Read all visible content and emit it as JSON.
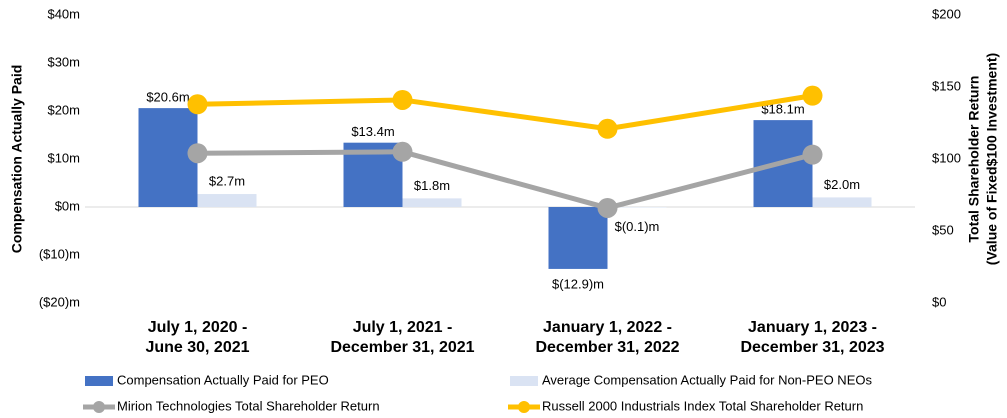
{
  "chart_data": {
    "type": "bar_line",
    "ylabel": "Compensation Actually Paid",
    "y2label": [
      "Total Shareholder Return",
      "(Value of Fixed$100 Investment)"
    ],
    "categories": [
      "July 1, 2020 -\nJune 30, 2021",
      "July 1, 2021 -\nDecember 31, 2021",
      "January 1, 2022 -\nDecember 31, 2022",
      "January 1, 2023 -\nDecember 31, 2023"
    ],
    "ylim": [
      -20,
      40
    ],
    "yticks": [
      {
        "value": -20,
        "label": "($20)m"
      },
      {
        "value": -10,
        "label": "($10)m"
      },
      {
        "value": 0,
        "label": "$0m"
      },
      {
        "value": 10,
        "label": "$10m"
      },
      {
        "value": 20,
        "label": "$20m"
      },
      {
        "value": 30,
        "label": "$30m"
      },
      {
        "value": 40,
        "label": "$40m"
      }
    ],
    "y2lim": [
      0,
      200
    ],
    "y2ticks": [
      {
        "value": 0,
        "label": "$0"
      },
      {
        "value": 50,
        "label": "$50"
      },
      {
        "value": 100,
        "label": "$100"
      },
      {
        "value": 150,
        "label": "$150"
      },
      {
        "value": 200,
        "label": "$200"
      }
    ],
    "series": [
      {
        "name": "Compensation Actually Paid for PEO",
        "kind": "bar",
        "color": "#4472c4",
        "values": [
          20.6,
          13.4,
          -12.9,
          18.1
        ],
        "value_labels": [
          "$20.6m",
          "$13.4m",
          "$(12.9)m",
          "$18.1m"
        ]
      },
      {
        "name": "Average Compensation Actually Paid for Non-PEO NEOs",
        "kind": "bar",
        "color": "#dae3f3",
        "values": [
          2.7,
          1.8,
          -0.1,
          2.0
        ],
        "value_labels": [
          "$2.7m",
          "$1.8m",
          "$(0.1)m",
          "$2.0m"
        ]
      },
      {
        "name": "Mirion Technologies Total Shareholder Return",
        "kind": "line",
        "axis": "y2",
        "color": "#a5a5a5",
        "values": [
          104,
          105,
          66,
          103
        ]
      },
      {
        "name": "Russell 2000 Industrials Index Total Shareholder Return",
        "kind": "line",
        "axis": "y2",
        "color": "#ffc000",
        "values": [
          138,
          141,
          121,
          144
        ]
      }
    ]
  }
}
